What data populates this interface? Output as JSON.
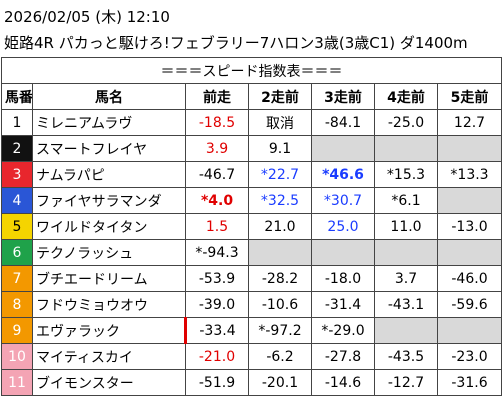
{
  "header": {
    "datetime": "2026/02/05 (木) 12:10",
    "race": "姫路4R パカっと駆けろ!フェブラリー7ハロン3歳(3歳C1) ダ1400m"
  },
  "table": {
    "title": "＝＝＝スピード指数表＝＝＝",
    "columns": [
      "馬番",
      "馬名",
      "前走",
      "2走前",
      "3走前",
      "4走前",
      "5走前"
    ],
    "rows": [
      [
        "1",
        "ミレニアムラヴ",
        "-18.5",
        "取消",
        "-84.1",
        "-25.0",
        "12.7"
      ],
      [
        "2",
        "スマートフレイヤ",
        "3.9",
        "9.1",
        null,
        null,
        null
      ],
      [
        "3",
        "ナムラパピ",
        "-46.7",
        "*22.7",
        "*46.6",
        "*15.3",
        "*13.3"
      ],
      [
        "4",
        "ファイヤサラマンダ",
        "*4.0",
        "*32.5",
        "*30.7",
        "*6.1",
        null
      ],
      [
        "5",
        "ワイルドタイタン",
        "1.5",
        "21.0",
        "25.0",
        "11.0",
        "-13.0"
      ],
      [
        "6",
        "テクノラッシュ",
        "*-94.3",
        null,
        null,
        null,
        null
      ],
      [
        "7",
        "ブチエードリーム",
        "-53.9",
        "-28.2",
        "-18.0",
        "3.7",
        "-46.0"
      ],
      [
        "8",
        "フドウミョウオウ",
        "-39.0",
        "-10.6",
        "-31.4",
        "-43.1",
        "-59.6"
      ],
      [
        "9",
        "エヴァラック",
        "-33.4",
        "*-97.2",
        "*-29.0",
        null,
        null
      ],
      [
        "10",
        "マイティスカイ",
        "-21.0",
        "-6.2",
        "-27.8",
        "-43.5",
        "-23.0"
      ],
      [
        "11",
        "ブイモンスター",
        "-51.9",
        "-20.1",
        "-14.6",
        "-12.7",
        "-31.6"
      ]
    ]
  }
}
